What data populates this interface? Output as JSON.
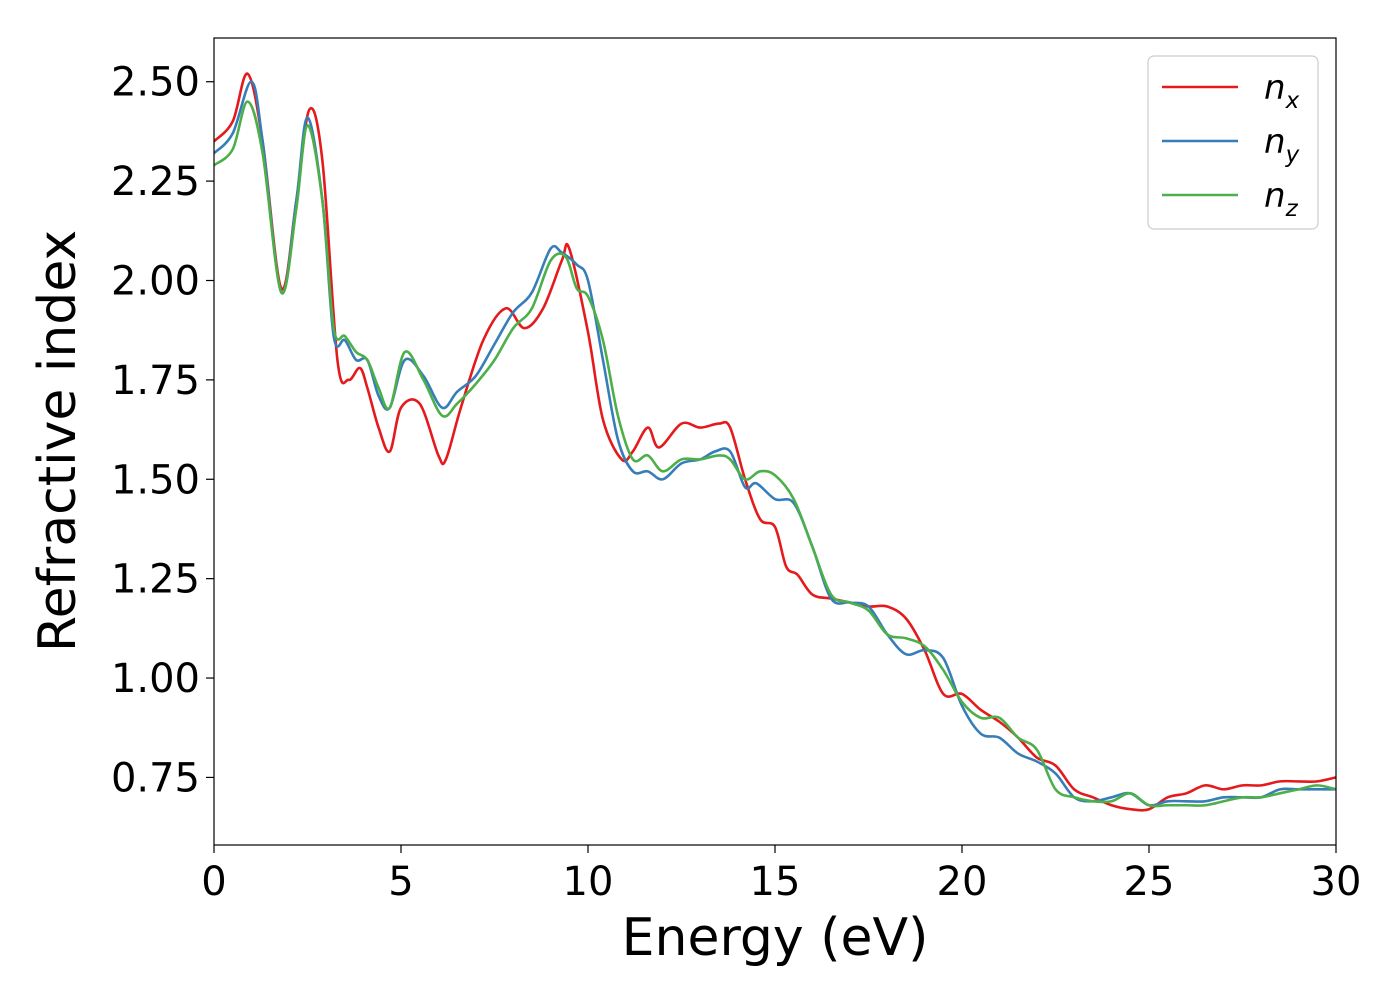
{
  "chart_data": {
    "type": "line",
    "title": "",
    "xlabel": "Energy (eV)",
    "ylabel": "Refractive index",
    "xlim": [
      0,
      30
    ],
    "ylim": [
      0.58,
      2.61
    ],
    "xticks": [
      0,
      5,
      10,
      15,
      20,
      25,
      30
    ],
    "xtick_labels": [
      "0",
      "5",
      "10",
      "15",
      "20",
      "25",
      "30"
    ],
    "yticks": [
      0.75,
      1.0,
      1.25,
      1.5,
      1.75,
      2.0,
      2.25,
      2.5
    ],
    "ytick_labels": [
      "0.75",
      "1.00",
      "1.25",
      "1.50",
      "1.75",
      "2.00",
      "2.25",
      "2.50"
    ],
    "grid": false,
    "legend_position": "top-right",
    "series": [
      {
        "name": "n_x",
        "label_base": "n",
        "label_sub": "x",
        "color": "#e41a1c",
        "x": [
          0,
          0.5,
          0.9,
          1.3,
          1.8,
          2.2,
          2.55,
          2.9,
          3.3,
          3.6,
          3.9,
          4.1,
          4.4,
          4.7,
          5.0,
          5.5,
          6.0,
          6.2,
          6.6,
          7.2,
          7.8,
          8.3,
          8.8,
          9.3,
          9.5,
          10.0,
          10.4,
          10.9,
          11.2,
          11.6,
          11.9,
          12.5,
          13.0,
          13.5,
          13.8,
          14.2,
          14.6,
          15.0,
          15.3,
          15.6,
          16.0,
          16.5,
          17.0,
          17.5,
          18.0,
          18.5,
          19.0,
          19.5,
          20.0,
          20.5,
          21.0,
          21.5,
          22.0,
          22.5,
          23.0,
          23.5,
          24.0,
          24.5,
          25.0,
          25.5,
          26.0,
          26.5,
          27.0,
          27.5,
          28.0,
          28.5,
          29.0,
          29.5,
          30.0
        ],
        "y": [
          2.35,
          2.4,
          2.52,
          2.35,
          1.98,
          2.2,
          2.43,
          2.3,
          1.8,
          1.75,
          1.78,
          1.73,
          1.63,
          1.57,
          1.68,
          1.69,
          1.56,
          1.55,
          1.68,
          1.85,
          1.93,
          1.88,
          1.93,
          2.05,
          2.08,
          1.87,
          1.65,
          1.55,
          1.57,
          1.63,
          1.58,
          1.64,
          1.63,
          1.64,
          1.63,
          1.5,
          1.4,
          1.38,
          1.28,
          1.26,
          1.21,
          1.2,
          1.19,
          1.18,
          1.18,
          1.15,
          1.07,
          0.96,
          0.96,
          0.92,
          0.89,
          0.85,
          0.8,
          0.78,
          0.72,
          0.7,
          0.68,
          0.67,
          0.67,
          0.7,
          0.71,
          0.73,
          0.72,
          0.73,
          0.73,
          0.74,
          0.74,
          0.74,
          0.75
        ]
      },
      {
        "name": "n_y",
        "label_base": "n",
        "label_sub": "y",
        "color": "#377eb8",
        "x": [
          0,
          0.5,
          1.0,
          1.3,
          1.8,
          2.2,
          2.5,
          2.9,
          3.2,
          3.5,
          3.8,
          4.1,
          4.4,
          4.7,
          5.1,
          5.6,
          6.1,
          6.5,
          7.0,
          7.5,
          8.0,
          8.5,
          9.0,
          9.3,
          9.7,
          10.0,
          10.4,
          10.8,
          11.2,
          11.6,
          12.0,
          12.5,
          13.0,
          13.4,
          13.8,
          14.2,
          14.5,
          15.0,
          15.5,
          16.0,
          16.5,
          17.0,
          17.5,
          18.0,
          18.5,
          19.0,
          19.5,
          20.0,
          20.5,
          21.0,
          21.5,
          22.0,
          22.5,
          23.0,
          23.5,
          24.0,
          24.5,
          25.0,
          25.5,
          26.0,
          26.5,
          27.0,
          27.5,
          28.0,
          28.5,
          29.0,
          29.5,
          30.0
        ],
        "y": [
          2.32,
          2.37,
          2.5,
          2.35,
          1.97,
          2.2,
          2.41,
          2.2,
          1.86,
          1.85,
          1.8,
          1.8,
          1.71,
          1.68,
          1.8,
          1.76,
          1.68,
          1.72,
          1.76,
          1.84,
          1.92,
          1.97,
          2.08,
          2.07,
          2.04,
          2.0,
          1.8,
          1.6,
          1.52,
          1.52,
          1.5,
          1.54,
          1.55,
          1.57,
          1.57,
          1.48,
          1.49,
          1.45,
          1.44,
          1.33,
          1.2,
          1.19,
          1.18,
          1.11,
          1.06,
          1.07,
          1.05,
          0.93,
          0.86,
          0.85,
          0.81,
          0.79,
          0.76,
          0.7,
          0.69,
          0.7,
          0.71,
          0.68,
          0.69,
          0.69,
          0.69,
          0.7,
          0.7,
          0.7,
          0.72,
          0.72,
          0.72,
          0.72
        ]
      },
      {
        "name": "n_z",
        "label_base": "n",
        "label_sub": "z",
        "color": "#4daf4a",
        "x": [
          0,
          0.5,
          0.9,
          1.3,
          1.8,
          2.2,
          2.5,
          2.9,
          3.2,
          3.5,
          3.8,
          4.1,
          4.4,
          4.7,
          5.1,
          5.6,
          6.1,
          6.5,
          7.0,
          7.5,
          8.0,
          8.5,
          9.0,
          9.4,
          9.7,
          10.0,
          10.4,
          10.8,
          11.2,
          11.6,
          12.0,
          12.5,
          13.0,
          13.5,
          13.8,
          14.2,
          14.6,
          15.0,
          15.5,
          16.0,
          16.5,
          17.0,
          17.5,
          18.0,
          18.5,
          19.0,
          19.5,
          20.0,
          20.5,
          21.0,
          21.5,
          22.0,
          22.5,
          23.0,
          23.5,
          24.0,
          24.5,
          25.0,
          25.5,
          26.0,
          26.5,
          27.0,
          27.5,
          28.0,
          28.5,
          29.0,
          29.5,
          30.0
        ],
        "y": [
          2.29,
          2.33,
          2.45,
          2.32,
          1.97,
          2.18,
          2.39,
          2.2,
          1.88,
          1.86,
          1.82,
          1.8,
          1.73,
          1.68,
          1.82,
          1.75,
          1.66,
          1.69,
          1.74,
          1.8,
          1.88,
          1.93,
          2.05,
          2.06,
          1.98,
          1.96,
          1.85,
          1.66,
          1.55,
          1.56,
          1.52,
          1.55,
          1.55,
          1.56,
          1.55,
          1.5,
          1.52,
          1.51,
          1.45,
          1.33,
          1.21,
          1.19,
          1.17,
          1.11,
          1.1,
          1.08,
          1.02,
          0.94,
          0.9,
          0.9,
          0.85,
          0.82,
          0.72,
          0.7,
          0.69,
          0.69,
          0.71,
          0.68,
          0.68,
          0.68,
          0.68,
          0.69,
          0.7,
          0.7,
          0.71,
          0.72,
          0.73,
          0.72
        ]
      }
    ]
  }
}
